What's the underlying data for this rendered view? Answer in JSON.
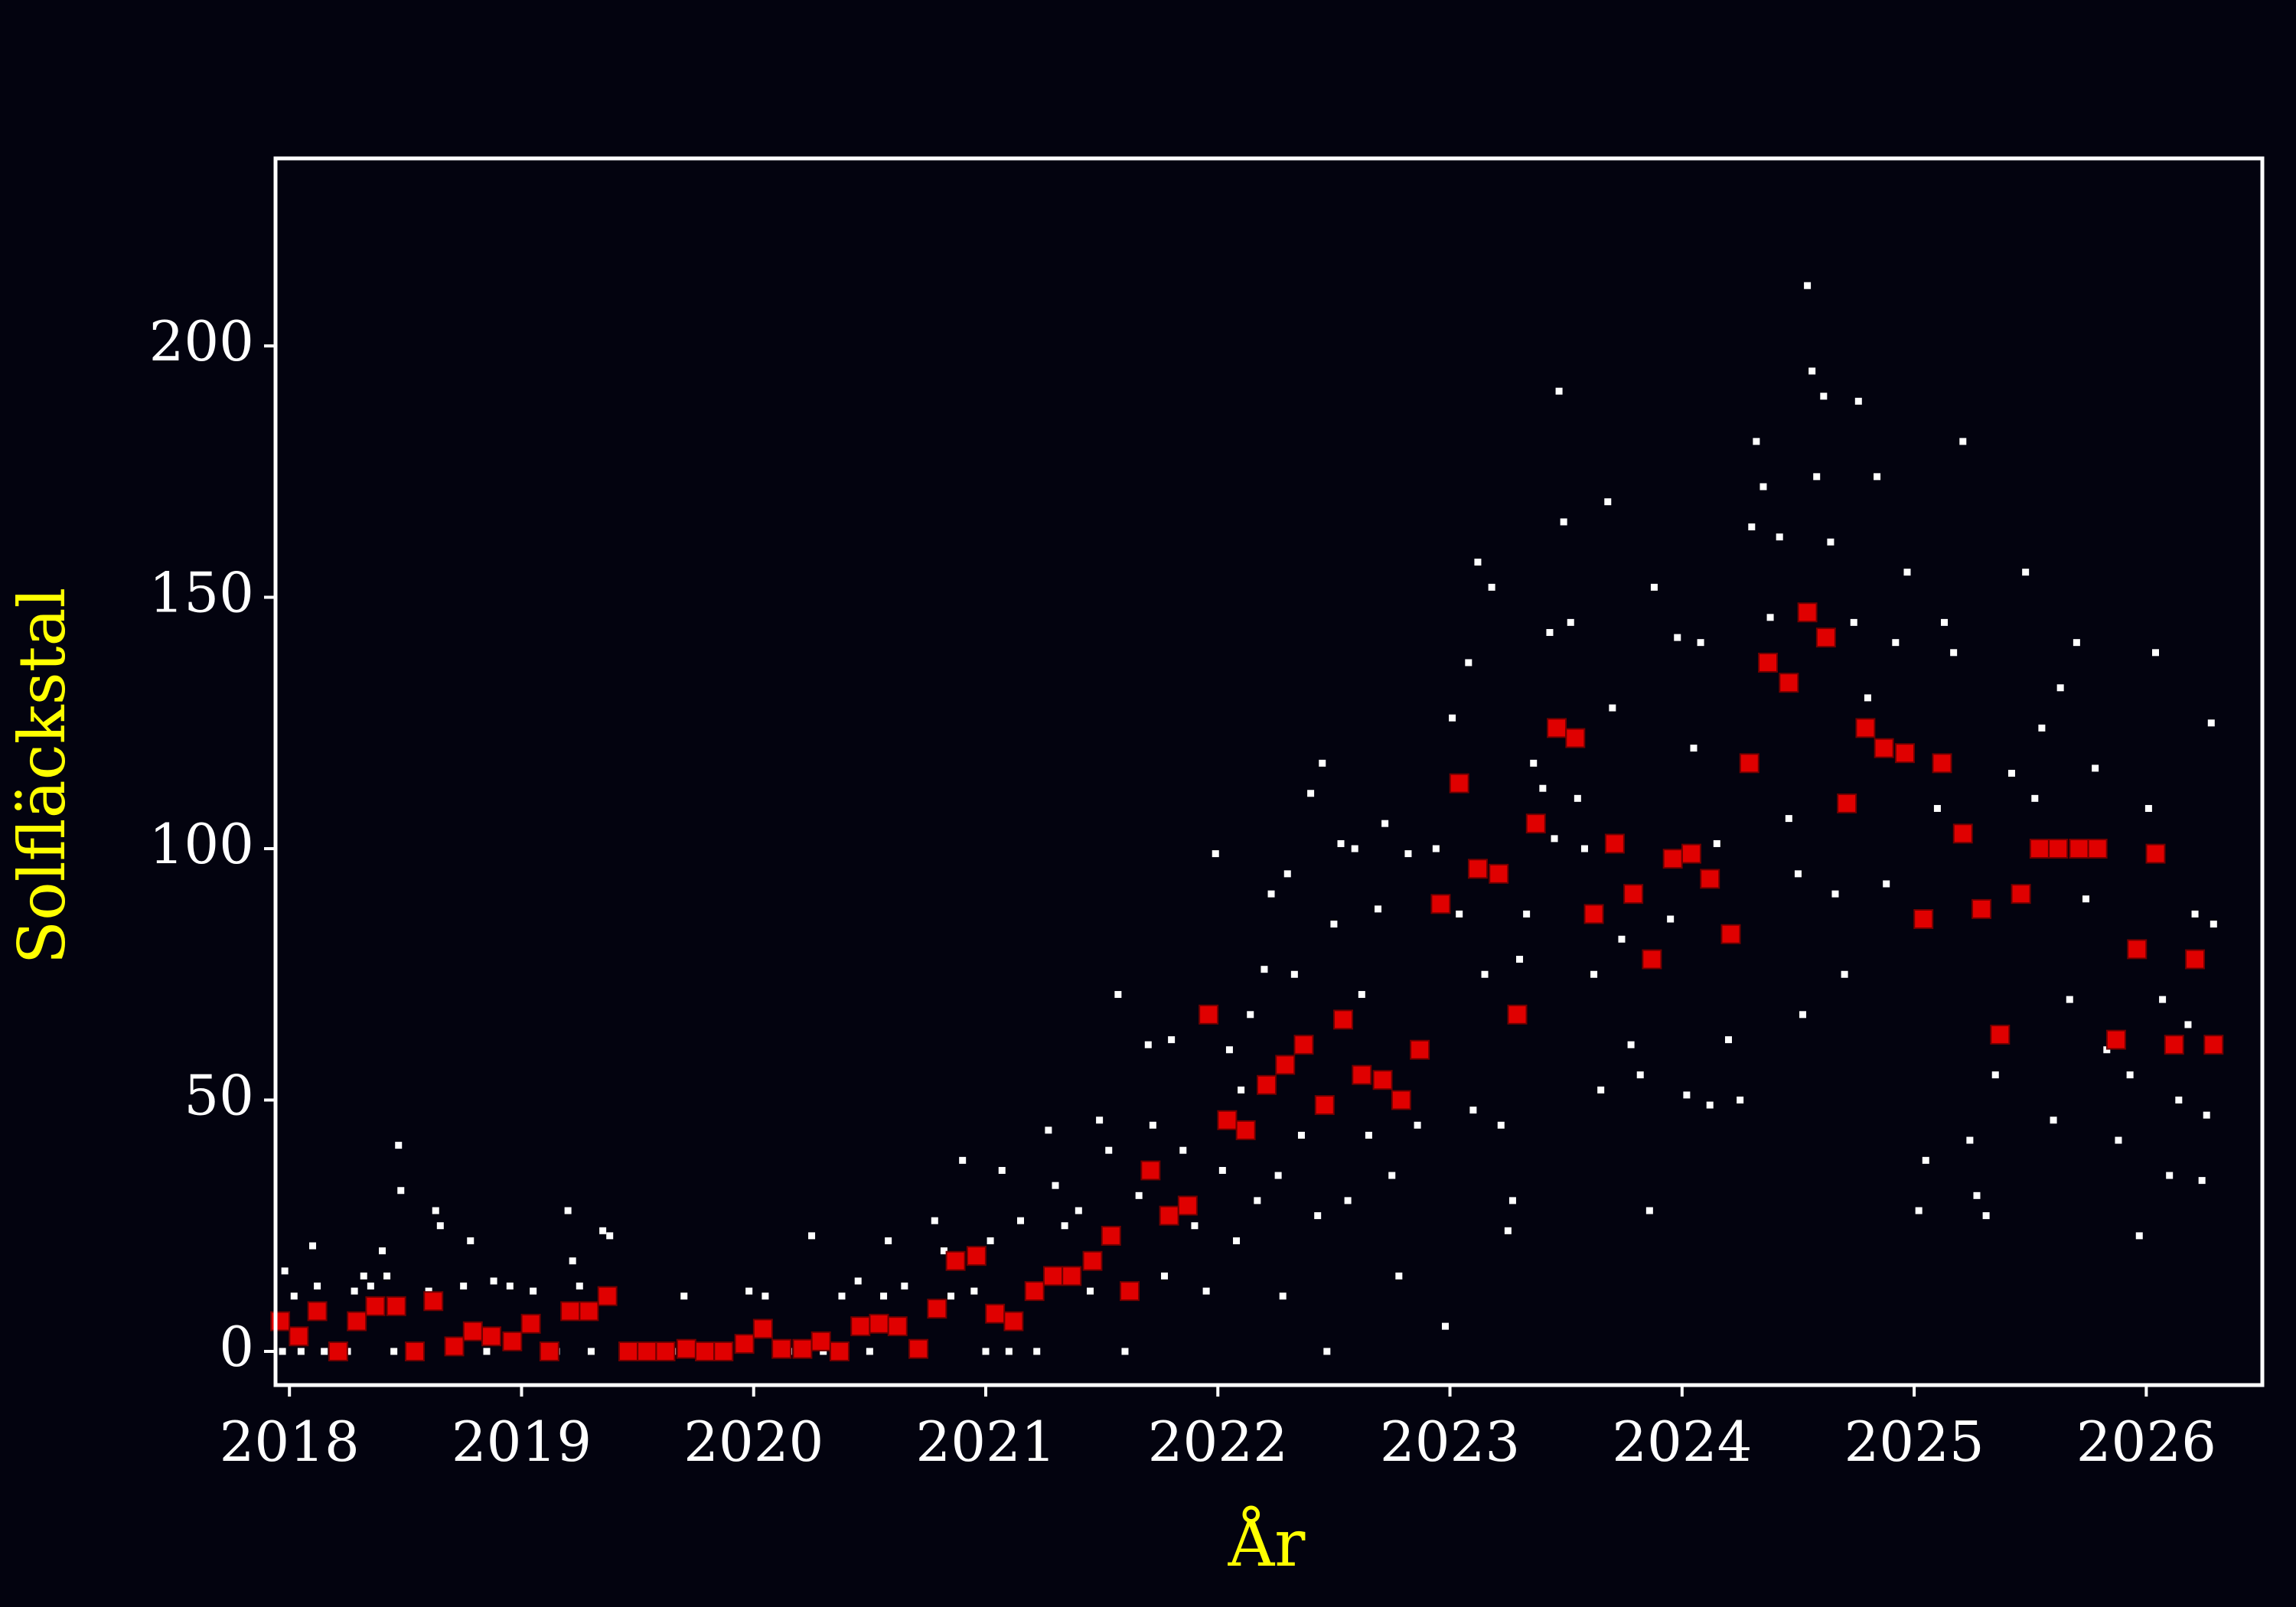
{
  "chart_data": {
    "type": "scatter",
    "x_label": "År",
    "y_label": "Solfläckstal",
    "xlim": [
      2017.94,
      2026.5
    ],
    "ylim": [
      -6.7,
      237.3
    ],
    "xticks": [
      2018,
      2019,
      2020,
      2021,
      2022,
      2023,
      2024,
      2025,
      2026
    ],
    "yticks": [
      0,
      50,
      100,
      150,
      200
    ],
    "background": "#03030f",
    "axis_color": "#ffffff",
    "label_color": "#ffff00",
    "series": [
      {
        "color": "#ffffff",
        "marker_size": 9,
        "x": [
          2017.97,
          2017.98,
          2018.02,
          2018.05,
          2018.1,
          2018.12,
          2018.15,
          2018.2,
          2018.25,
          2018.28,
          2018.32,
          2018.35,
          2018.4,
          2018.42,
          2018.45,
          2018.47,
          2018.48,
          2018.55,
          2018.6,
          2018.63,
          2018.65,
          2018.7,
          2018.75,
          2018.78,
          2018.85,
          2018.88,
          2018.95,
          2019.05,
          2019.1,
          2019.15,
          2019.2,
          2019.22,
          2019.25,
          2019.3,
          2019.35,
          2019.38,
          2019.45,
          2019.55,
          2019.65,
          2019.7,
          2019.85,
          2019.98,
          2020.05,
          2020.1,
          2020.15,
          2020.25,
          2020.3,
          2020.38,
          2020.45,
          2020.5,
          2020.56,
          2020.58,
          2020.65,
          2020.7,
          2020.78,
          2020.82,
          2020.85,
          2020.9,
          2020.95,
          2021.0,
          2021.02,
          2021.07,
          2021.1,
          2021.15,
          2021.22,
          2021.27,
          2021.3,
          2021.34,
          2021.4,
          2021.45,
          2021.49,
          2021.53,
          2021.57,
          2021.6,
          2021.66,
          2021.7,
          2021.72,
          2021.77,
          2021.8,
          2021.85,
          2021.9,
          2021.95,
          2021.99,
          2022.02,
          2022.05,
          2022.08,
          2022.1,
          2022.14,
          2022.17,
          2022.2,
          2022.23,
          2022.26,
          2022.28,
          2022.3,
          2022.33,
          2022.36,
          2022.4,
          2022.43,
          2022.45,
          2022.47,
          2022.5,
          2022.53,
          2022.56,
          2022.59,
          2022.62,
          2022.65,
          2022.69,
          2022.72,
          2022.75,
          2022.78,
          2022.82,
          2022.86,
          2022.94,
          2022.98,
          2023.01,
          2023.04,
          2023.08,
          2023.1,
          2023.12,
          2023.15,
          2023.18,
          2023.22,
          2023.25,
          2023.27,
          2023.3,
          2023.33,
          2023.36,
          2023.4,
          2023.43,
          2023.45,
          2023.47,
          2023.49,
          2023.52,
          2023.55,
          2023.58,
          2023.62,
          2023.65,
          2023.68,
          2023.7,
          2023.74,
          2023.78,
          2023.82,
          2023.86,
          2023.88,
          2023.95,
          2023.98,
          2024.02,
          2024.05,
          2024.08,
          2024.12,
          2024.15,
          2024.2,
          2024.25,
          2024.3,
          2024.32,
          2024.35,
          2024.38,
          2024.42,
          2024.46,
          2024.5,
          2024.52,
          2024.54,
          2024.56,
          2024.58,
          2024.61,
          2024.64,
          2024.66,
          2024.7,
          2024.74,
          2024.76,
          2024.8,
          2024.84,
          2024.88,
          2024.92,
          2024.97,
          2025.02,
          2025.05,
          2025.1,
          2025.13,
          2025.17,
          2025.21,
          2025.24,
          2025.27,
          2025.31,
          2025.35,
          2025.42,
          2025.48,
          2025.52,
          2025.55,
          2025.6,
          2025.63,
          2025.67,
          2025.7,
          2025.74,
          2025.78,
          2025.83,
          2025.88,
          2025.93,
          2025.97,
          2026.01,
          2026.04,
          2026.07,
          2026.1,
          2026.14,
          2026.18,
          2026.21,
          2026.24,
          2026.26,
          2026.28,
          2026.29
        ],
        "values": [
          0,
          16,
          11,
          0,
          21,
          13,
          0,
          0,
          0,
          12,
          15,
          13,
          20,
          15,
          0,
          41,
          32,
          0,
          12,
          28,
          25,
          0,
          13,
          22,
          0,
          14,
          13,
          12,
          0,
          0,
          28,
          18,
          13,
          0,
          24,
          23,
          0,
          0,
          0,
          11,
          0,
          12,
          11,
          0,
          0,
          23,
          0,
          11,
          14,
          0,
          11,
          22,
          13,
          0,
          26,
          20,
          11,
          38,
          12,
          0,
          22,
          36,
          0,
          26,
          0,
          44,
          33,
          25,
          28,
          12,
          46,
          40,
          71,
          0,
          31,
          61,
          45,
          15,
          62,
          40,
          25,
          12,
          99,
          36,
          60,
          22,
          52,
          67,
          30,
          76,
          91,
          35,
          11,
          95,
          75,
          43,
          111,
          27,
          117,
          0,
          85,
          101,
          30,
          100,
          71,
          43,
          88,
          105,
          35,
          15,
          99,
          45,
          100,
          5,
          126,
          87,
          137,
          48,
          157,
          75,
          152,
          45,
          24,
          30,
          78,
          87,
          117,
          112,
          143,
          102,
          191,
          165,
          145,
          110,
          100,
          75,
          52,
          169,
          128,
          82,
          61,
          55,
          28,
          152,
          86,
          142,
          51,
          120,
          141,
          49,
          101,
          62,
          50,
          164,
          181,
          172,
          146,
          162,
          106,
          95,
          67,
          212,
          195,
          174,
          190,
          161,
          91,
          75,
          145,
          189,
          130,
          174,
          93,
          141,
          155,
          28,
          38,
          108,
          145,
          139,
          181,
          42,
          31,
          27,
          55,
          115,
          155,
          110,
          124,
          46,
          132,
          70,
          141,
          90,
          116,
          60,
          42,
          55,
          23,
          108,
          139,
          70,
          35,
          50,
          65,
          87,
          34,
          47,
          125,
          85
        ]
      },
      {
        "color": "#e00000",
        "marker_size": 24,
        "x": [
          2017.96,
          2018.04,
          2018.12,
          2018.21,
          2018.29,
          2018.37,
          2018.46,
          2018.54,
          2018.62,
          2018.71,
          2018.79,
          2018.87,
          2018.96,
          2019.04,
          2019.12,
          2019.21,
          2019.29,
          2019.37,
          2019.46,
          2019.54,
          2019.62,
          2019.71,
          2019.79,
          2019.87,
          2019.96,
          2020.04,
          2020.12,
          2020.21,
          2020.29,
          2020.37,
          2020.46,
          2020.54,
          2020.62,
          2020.71,
          2020.79,
          2020.87,
          2020.96,
          2021.04,
          2021.12,
          2021.21,
          2021.29,
          2021.37,
          2021.46,
          2021.54,
          2021.62,
          2021.71,
          2021.79,
          2021.87,
          2021.96,
          2022.04,
          2022.12,
          2022.21,
          2022.29,
          2022.37,
          2022.46,
          2022.54,
          2022.62,
          2022.71,
          2022.79,
          2022.87,
          2022.96,
          2023.04,
          2023.12,
          2023.21,
          2023.29,
          2023.37,
          2023.46,
          2023.54,
          2023.62,
          2023.71,
          2023.79,
          2023.87,
          2023.96,
          2024.04,
          2024.12,
          2024.21,
          2024.29,
          2024.37,
          2024.46,
          2024.54,
          2024.62,
          2024.71,
          2024.79,
          2024.87,
          2024.96,
          2025.04,
          2025.12,
          2025.21,
          2025.29,
          2025.37,
          2025.46,
          2025.54,
          2025.62,
          2025.71,
          2025.79,
          2025.87,
          2025.96,
          2026.04,
          2026.12,
          2026.21,
          2026.29
        ],
        "values": [
          6,
          3,
          8,
          0,
          6,
          9,
          9,
          0,
          10,
          1,
          4,
          3,
          2,
          5.5,
          0,
          8,
          8,
          11,
          0,
          0,
          0,
          0.5,
          0,
          0,
          1.5,
          4.5,
          0.5,
          0.5,
          2,
          0,
          5,
          5.5,
          5,
          0.5,
          8.5,
          18,
          19,
          7.5,
          6,
          12,
          15,
          15,
          18,
          23,
          12,
          36,
          27,
          29,
          67,
          46,
          44,
          53,
          57,
          61,
          49,
          66,
          55,
          54,
          50,
          60,
          89,
          113,
          96,
          95,
          67,
          105,
          124,
          122,
          87,
          101,
          91,
          78,
          98,
          99,
          94,
          83,
          117,
          137,
          133,
          147,
          142,
          109,
          124,
          120,
          119,
          86,
          117,
          103,
          88,
          63,
          91,
          100,
          100,
          100,
          100,
          62,
          80,
          99,
          61,
          78,
          61
        ]
      }
    ]
  }
}
